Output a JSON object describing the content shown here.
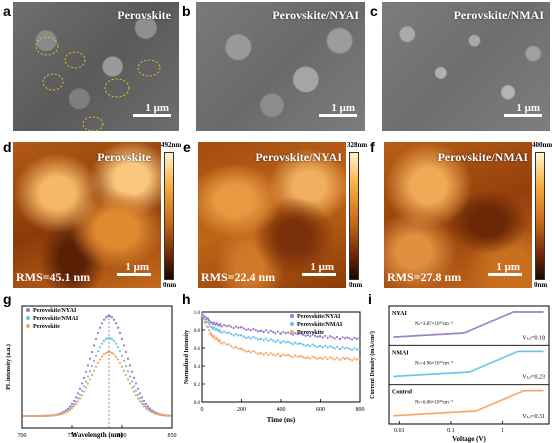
{
  "panels": {
    "a": {
      "label": "a",
      "title": "Perovskite",
      "scale": "1 μm"
    },
    "b": {
      "label": "b",
      "title": "Perovskite/NYAI",
      "scale": "1 μm"
    },
    "c": {
      "label": "c",
      "title": "Perovskite/NMAI",
      "scale": "1 μm"
    },
    "d": {
      "label": "d",
      "title": "Perovskite",
      "rms": "RMS=45.1 nm",
      "scale": "1 μm",
      "cmax": "492nm",
      "cmin": "0nm"
    },
    "e": {
      "label": "e",
      "title": "Perovskite/NYAI",
      "rms": "RMS=22.4 nm",
      "scale": "1 μm",
      "cmax": "328nm",
      "cmin": "0nm"
    },
    "f": {
      "label": "f",
      "title": "Perovskite/NMAI",
      "rms": "RMS=27.8 nm",
      "scale": "1 μm",
      "cmax": "400nm",
      "cmin": "0nm"
    },
    "g": {
      "label": "g"
    },
    "h": {
      "label": "h"
    },
    "i": {
      "label": "i"
    }
  },
  "colors": {
    "nyai": "#9b78c8",
    "nmai": "#6cc0e8",
    "perov": "#f2a46a"
  },
  "chart_data": [
    {
      "type": "line",
      "xlabel": "Wavelength (nm)",
      "ylabel": "PL intensity (a.u.)",
      "xlim": [
        700,
        850
      ],
      "xticks": [
        "700",
        "750",
        "800",
        "850"
      ],
      "legend": [
        "Perovskite/NYAI",
        "Perovskite/NMAI",
        "Perovskite"
      ],
      "peak": 787,
      "series": [
        {
          "name": "Perovskite/NYAI",
          "peak_x": 787,
          "peak_y": 1.0
        },
        {
          "name": "Perovskite/NMAI",
          "peak_x": 787,
          "peak_y": 0.78
        },
        {
          "name": "Perovskite",
          "peak_x": 787,
          "peak_y": 0.64
        }
      ]
    },
    {
      "type": "scatter",
      "xlabel": "Time (ns)",
      "ylabel": "Normalized Intensity",
      "xlim": [
        0,
        800
      ],
      "ylim": [
        0,
        1.0
      ],
      "xticks": [
        "0",
        "200",
        "400",
        "600",
        "800"
      ],
      "yticks": [
        "0.0",
        "0.2",
        "0.4",
        "0.6",
        "0.8",
        "1.0"
      ],
      "legend": [
        "Perovskite/NYAI",
        "Perovskite/NMAI",
        "Perovskite"
      ],
      "series": [
        {
          "name": "Perovskite/NYAI",
          "x": [
            0,
            50,
            100,
            200,
            300,
            400,
            500,
            600,
            700,
            800
          ],
          "y": [
            0.98,
            0.88,
            0.85,
            0.82,
            0.79,
            0.77,
            0.75,
            0.73,
            0.71,
            0.7
          ]
        },
        {
          "name": "Perovskite/NMAI",
          "x": [
            0,
            50,
            100,
            200,
            300,
            400,
            500,
            600,
            700,
            800
          ],
          "y": [
            0.96,
            0.83,
            0.78,
            0.73,
            0.7,
            0.67,
            0.64,
            0.62,
            0.6,
            0.58
          ]
        },
        {
          "name": "Perovskite",
          "x": [
            0,
            50,
            100,
            200,
            300,
            400,
            500,
            600,
            700,
            800
          ],
          "y": [
            0.95,
            0.74,
            0.66,
            0.58,
            0.54,
            0.52,
            0.5,
            0.49,
            0.48,
            0.47
          ]
        }
      ]
    },
    {
      "type": "line",
      "xlabel": "Voltage (V)",
      "ylabel": "Current Density (mA/cm²)",
      "xticks": [
        "0.01",
        "0.1",
        "1"
      ],
      "subplots": [
        {
          "name": "NYAI",
          "nt": "Nₜ=3.87×10¹⁵cm⁻³",
          "vtfl": "Vₜₒₗ=0.18"
        },
        {
          "name": "NMAI",
          "nt": "Nₜ=4.96×10¹⁵cm⁻³",
          "vtfl": "Vₜₒₗ=0.23"
        },
        {
          "name": "Control",
          "nt": "Nₜ=6.66×10¹⁵cm⁻³",
          "vtfl": "Vₜₒₗ=0.31"
        }
      ]
    }
  ]
}
